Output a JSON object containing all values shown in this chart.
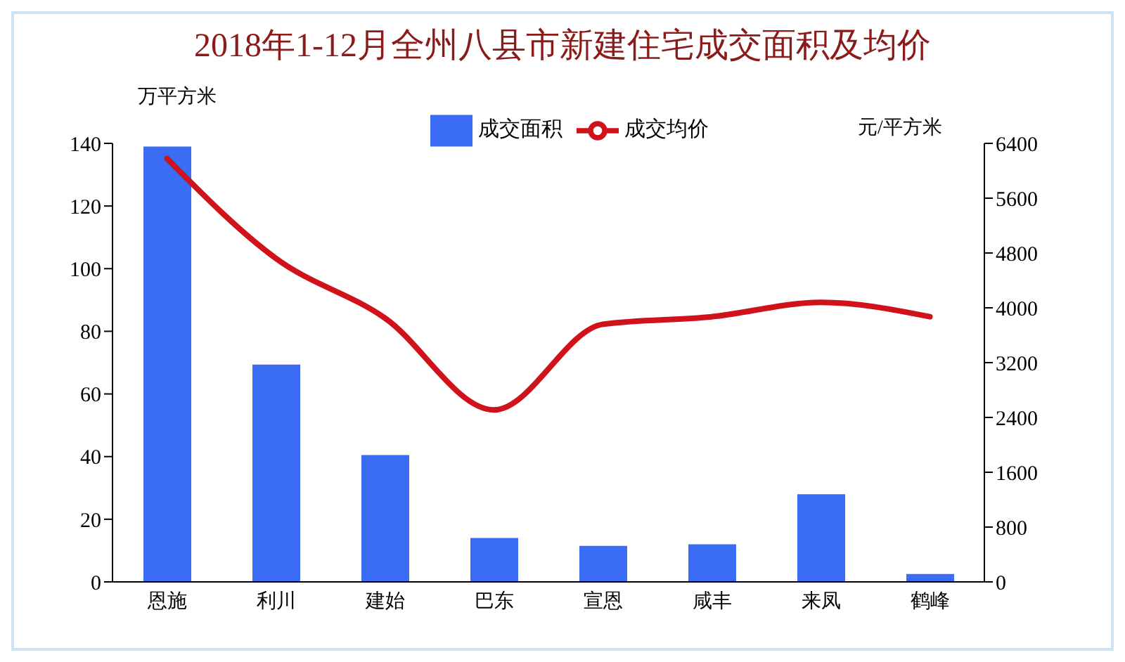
{
  "chart_data": {
    "type": "bar",
    "title": "2018年1-12月全州八县市新建住宅成交面积及均价",
    "ylabel": "万平方米",
    "y2label": "元/平方米",
    "categories": [
      "恩施",
      "利川",
      "建始",
      "巴东",
      "宣恩",
      "咸丰",
      "来凤",
      "鹤峰"
    ],
    "series": [
      {
        "name": "成交面积",
        "color": "#3a6cf4",
        "values": [
          139,
          69.4,
          40.5,
          14,
          11.5,
          12,
          28,
          2.5
        ]
      },
      {
        "name": "成交均价",
        "type": "line",
        "axis": "y2",
        "color": "#d0121b",
        "values": [
          6180,
          4720,
          3850,
          2510,
          3760,
          3870,
          4080,
          3870
        ]
      }
    ],
    "ylim": [
      0,
      140
    ],
    "yticks": [
      0,
      20,
      40,
      60,
      80,
      100,
      120,
      140
    ],
    "y2lim": [
      0,
      6400
    ],
    "y2ticks": [
      0,
      800,
      1600,
      2400,
      3200,
      4000,
      4800,
      5600,
      6400
    ],
    "grid": false,
    "legend": "top",
    "marker": "none",
    "line_style": "solid"
  }
}
